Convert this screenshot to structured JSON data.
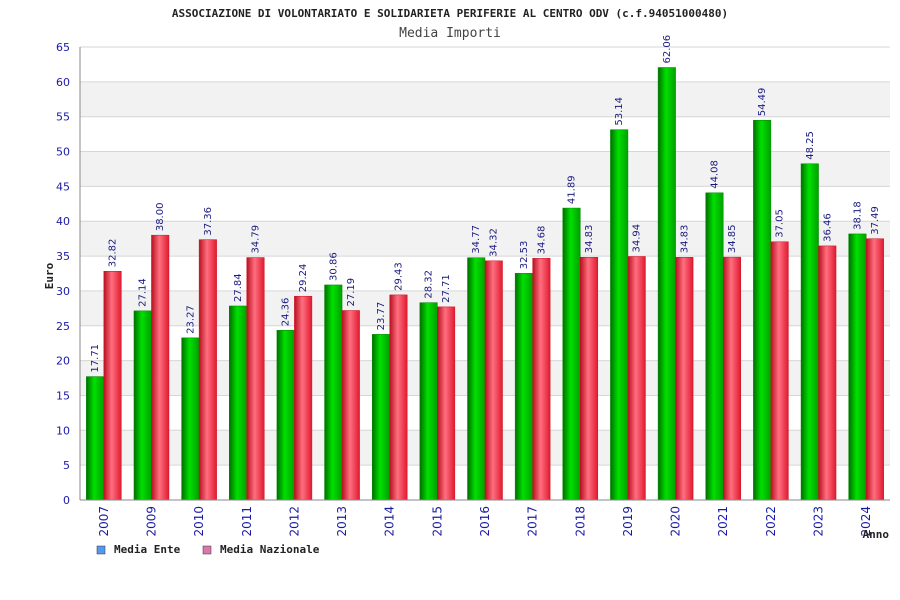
{
  "chart_data": {
    "type": "bar",
    "title": "ASSOCIAZIONE DI VOLONTARIATO E SOLIDARIETA PERIFERIE AL CENTRO ODV (c.f.94051000480)",
    "subtitle": "Media Importi",
    "xlabel": "Anno",
    "ylabel": "Euro",
    "ylim": [
      0,
      65
    ],
    "yticks": [
      0,
      5,
      10,
      15,
      20,
      25,
      30,
      35,
      40,
      45,
      50,
      55,
      60,
      65
    ],
    "grid": true,
    "legend_position": "bottom-left",
    "categories": [
      "2007",
      "2009",
      "2010",
      "2011",
      "2012",
      "2013",
      "2014",
      "2015",
      "2016",
      "2017",
      "2018",
      "2019",
      "2020",
      "2021",
      "2022",
      "2023",
      "2024"
    ],
    "series": [
      {
        "name": "Media Ente",
        "color": "#00bb00",
        "legend_color": "#5599ee",
        "values": [
          17.71,
          27.14,
          23.27,
          27.84,
          24.36,
          30.86,
          23.77,
          28.32,
          34.77,
          32.53,
          41.89,
          53.14,
          62.06,
          44.08,
          54.49,
          48.25,
          38.18
        ],
        "labels": [
          "17.71",
          "27.14",
          "23.27",
          "27.84",
          "24.36",
          "30.86",
          "23.77",
          "28.32",
          "34.77",
          "32.53",
          "41.89",
          "53.14",
          "62.06",
          "44.08",
          "54.49",
          "48.25",
          "38.18"
        ]
      },
      {
        "name": "Media Nazionale",
        "color": "#ee3344",
        "legend_color": "#dd77aa",
        "values": [
          32.82,
          38.0,
          37.36,
          34.79,
          29.24,
          27.19,
          29.43,
          27.71,
          34.32,
          34.68,
          34.83,
          34.94,
          34.83,
          34.85,
          37.05,
          36.46,
          37.49
        ],
        "labels": [
          "32.82",
          "38.00",
          "37.36",
          "34.79",
          "29.24",
          "27.19",
          "29.43",
          "27.71",
          "34.32",
          "34.68",
          "34.83",
          "34.94",
          "34.83",
          "34.85",
          "37.05",
          "36.46",
          "37.49"
        ]
      }
    ]
  }
}
